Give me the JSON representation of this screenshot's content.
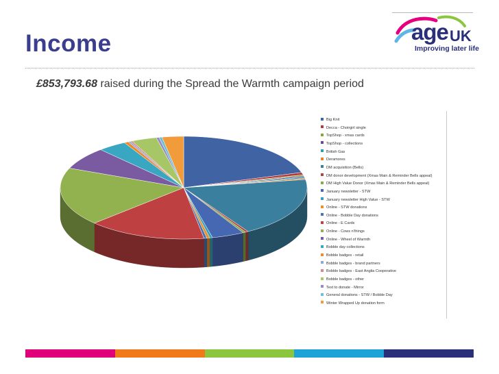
{
  "slide": {
    "title": "Income",
    "subtitle_amount": "£853,793.68",
    "subtitle_rest": "raised during the Spread the Warmth campaign period"
  },
  "logo": {
    "wordmark": "age",
    "wordmark_suffix": "UK",
    "tagline": "Improving later life",
    "colors": [
      "#e5007d",
      "#5fb5e5",
      "#8cc63f",
      "#2a2f7a"
    ]
  },
  "footer_colors": [
    "#e0007a",
    "#f07a1a",
    "#8cc63f",
    "#1ea3d8",
    "#2a2f7a"
  ],
  "chart_data": {
    "type": "pie",
    "title": "",
    "legend_position": "right",
    "series": [
      {
        "label": "Big Knit",
        "value": 21.5,
        "color": "#3f63a3"
      },
      {
        "label": "Decca - Choirgirl single",
        "value": 0.8,
        "color": "#b1383b"
      },
      {
        "label": "TopShop - xmas cards",
        "value": 0.4,
        "color": "#82a640"
      },
      {
        "label": "TopShop - collections",
        "value": 0.4,
        "color": "#6a4a90"
      },
      {
        "label": "British Gas",
        "value": 0.4,
        "color": "#2f9cb6"
      },
      {
        "label": "Deramores",
        "value": 0.4,
        "color": "#e0842f"
      },
      {
        "label": "DM acquisition (Bells)",
        "value": 20.0,
        "color": "#3a7f9e"
      },
      {
        "label": "DM donor development (Xmas Main & Reminder Bells appeal)",
        "value": 0.4,
        "color": "#b04444"
      },
      {
        "label": "DM High Value Donor (Xmas Main & Reminder Bells appeal)",
        "value": 0.4,
        "color": "#8aab4a"
      },
      {
        "label": "January newsletter - STW",
        "value": 4.5,
        "color": "#4668b2"
      },
      {
        "label": "January newsletter High Value - STW",
        "value": 0.4,
        "color": "#3aa0b8"
      },
      {
        "label": "Online - STW donations",
        "value": 0.4,
        "color": "#e8902e"
      },
      {
        "label": "Online - Bobble Day donations",
        "value": 0.4,
        "color": "#4a74b4"
      },
      {
        "label": "Online - E Cards",
        "value": 16.5,
        "color": "#bf4040"
      },
      {
        "label": "Online - Cows n'things",
        "value": 19.5,
        "color": "#92b14f"
      },
      {
        "label": "Online - Wheel of Warmth",
        "value": 7.5,
        "color": "#7a5aa0"
      },
      {
        "label": "Bobble day collections",
        "value": 4.0,
        "color": "#3aa7c2"
      },
      {
        "label": "Bobble badges - retail",
        "value": 0.6,
        "color": "#ec8a2c"
      },
      {
        "label": "Bobble badges - brand partners",
        "value": 0.3,
        "color": "#8fa8d8"
      },
      {
        "label": "Bobble badges - East Anglia Cooperative",
        "value": 0.3,
        "color": "#d68a8a"
      },
      {
        "label": "Bobble badges - other",
        "value": 3.5,
        "color": "#a7c766"
      },
      {
        "label": "Text to donate - Mirror",
        "value": 0.4,
        "color": "#9a8ac0"
      },
      {
        "label": "General donations - STW / Bobble Day",
        "value": 0.4,
        "color": "#6cc0d6"
      },
      {
        "label": "Winter Wrapped Up donation form",
        "value": 3.0,
        "color": "#f29b3a"
      }
    ]
  }
}
